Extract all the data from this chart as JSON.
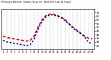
{
  "title": "Milwaukee Weather  Outdoor Temp (vs)  Wind Chill (Last 24 Hours)",
  "bg_color": "#ffffff",
  "plot_bg_color": "#ffffff",
  "grid_color": "#888888",
  "ylim": [
    20,
    75
  ],
  "ytick_right": [
    25,
    30,
    35,
    40,
    45,
    50,
    55,
    60,
    65,
    70
  ],
  "temp_color": "#cc0000",
  "chill_color": "#0000cc",
  "hours": [
    0,
    1,
    2,
    3,
    4,
    5,
    6,
    7,
    8,
    9,
    10,
    11,
    12,
    13,
    14,
    15,
    16,
    17,
    18,
    19,
    20,
    21,
    22,
    23
  ],
  "temp": [
    38,
    36,
    35,
    34,
    33,
    32,
    31,
    32,
    38,
    50,
    60,
    66,
    68,
    68,
    66,
    64,
    60,
    55,
    50,
    46,
    42,
    38,
    35,
    34
  ],
  "chill": [
    32,
    30,
    29,
    28,
    27,
    26,
    25,
    26,
    34,
    47,
    58,
    64,
    67,
    67,
    65,
    63,
    59,
    54,
    49,
    45,
    41,
    37,
    29,
    28
  ]
}
